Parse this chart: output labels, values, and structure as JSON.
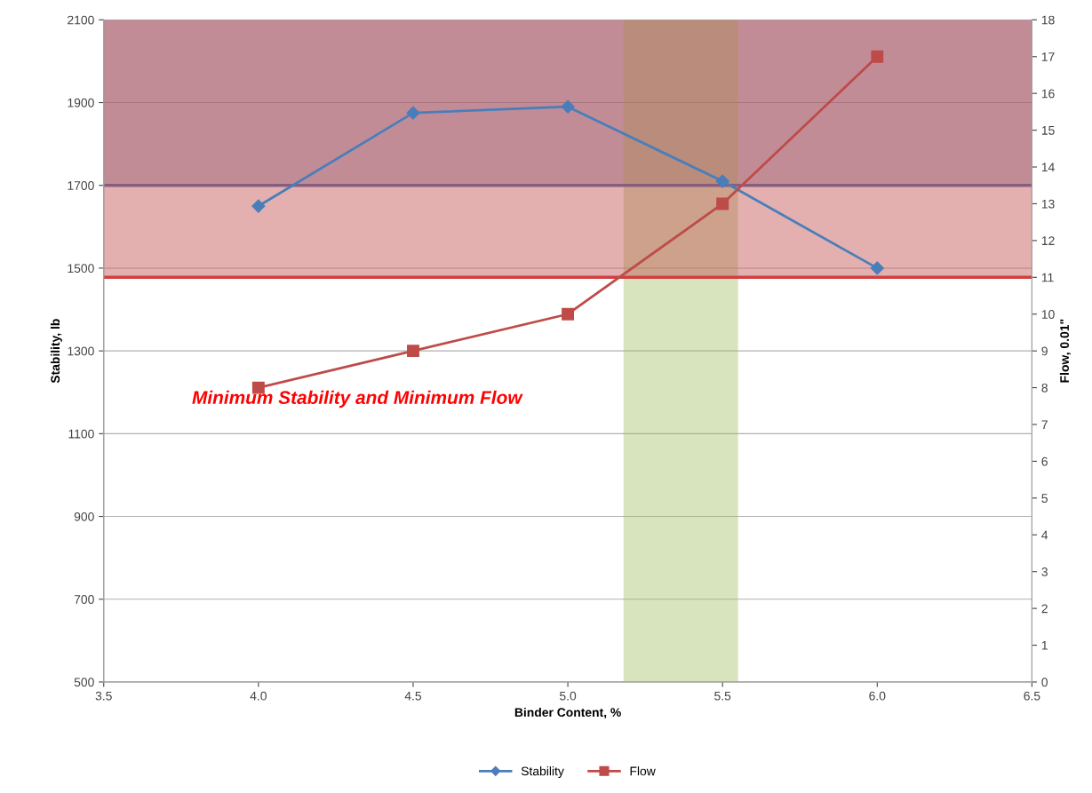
{
  "chart_data": {
    "type": "line",
    "xlabel": "Binder Content, %",
    "ylabel": "Stability, lb",
    "y2label": "Flow, 0.01\"",
    "x": [
      4.0,
      4.5,
      5.0,
      5.5,
      6.0
    ],
    "series": [
      {
        "name": "Stability",
        "color": "#4a7ebb",
        "marker": "diamond",
        "values": [
          1650,
          1875,
          1890,
          1710,
          1500
        ]
      },
      {
        "name": "Flow",
        "color": "#be4b48",
        "marker": "square",
        "axis": "y2",
        "values": [
          8,
          9,
          10,
          13,
          17
        ]
      }
    ],
    "xlim": [
      3.5,
      6.5
    ],
    "xticks": [
      {
        "value": 3.5,
        "label": "3.5"
      },
      {
        "value": 4.0,
        "label": "4.0"
      },
      {
        "value": 4.5,
        "label": "4.5"
      },
      {
        "value": 5.0,
        "label": "5.0"
      },
      {
        "value": 5.5,
        "label": "5.5"
      },
      {
        "value": 6.0,
        "label": "6.0"
      },
      {
        "value": 6.5,
        "label": "6.5"
      }
    ],
    "ylim": [
      500,
      2100
    ],
    "yticks": [
      500,
      700,
      900,
      1100,
      1300,
      1500,
      1700,
      1900,
      2100
    ],
    "y2lim": [
      0,
      18
    ],
    "y2ticks": [
      0,
      1,
      2,
      3,
      4,
      5,
      6,
      7,
      8,
      9,
      10,
      11,
      12,
      13,
      14,
      15,
      16,
      17,
      18
    ],
    "bands": [
      {
        "axis": "y2",
        "from": 11,
        "to": 18,
        "color": "#c0504d"
      },
      {
        "axis": "y",
        "from": 1700,
        "to": 2100,
        "color": "#7a6f9b"
      },
      {
        "axis": "x",
        "from": 5.18,
        "to": 5.55,
        "color": "#9bbb59"
      }
    ],
    "ref_lines": [
      {
        "axis": "y",
        "value": 1700,
        "color": "#5a6aa8"
      },
      {
        "axis": "y2",
        "value": 11,
        "color": "#d04040"
      }
    ],
    "annotations": [
      "Minimum Stability and Minimum Flow"
    ],
    "grid": "y",
    "legend": "bottom",
    "line_style": "solid"
  }
}
